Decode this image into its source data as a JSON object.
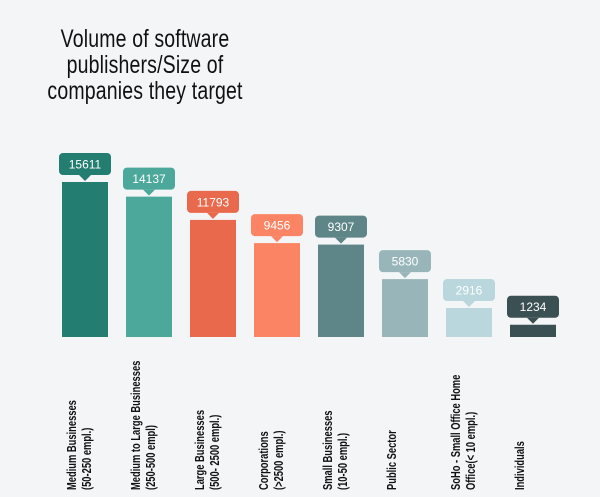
{
  "chart_data": {
    "type": "bar",
    "title_lines": [
      "Volume of software",
      "publishers/Size of",
      "companies they  target"
    ],
    "categories": [
      [
        "Medium Businesses",
        "(50-250 empl.)"
      ],
      [
        "Medium to Large Businesses",
        "(250-500 empl)"
      ],
      [
        "Large Businesses",
        "(500- 2500 empl.)"
      ],
      [
        "Corporations",
        "(>2500 empl.)"
      ],
      [
        "Small Businesses",
        "(10-50 empl.)"
      ],
      [
        "Public Sector"
      ],
      [
        "SoHo - Small Office Home",
        "Office(< 10 empl.)"
      ],
      [
        "Individuals"
      ]
    ],
    "values": [
      15611,
      14137,
      11793,
      9456,
      9307,
      5830,
      2916,
      1234
    ],
    "colors": [
      "#237d70",
      "#4ba89b",
      "#e8694b",
      "#fa8463",
      "#5e8587",
      "#98b6ba",
      "#b9d7dd",
      "#3b5053"
    ],
    "ylim": [
      0,
      16000
    ],
    "grid": false,
    "legend": "none"
  }
}
